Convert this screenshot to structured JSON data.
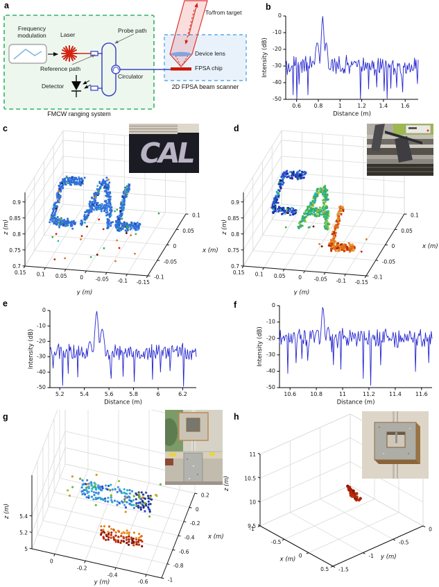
{
  "panels": {
    "a": {
      "label": "a"
    },
    "b": {
      "label": "b"
    },
    "c": {
      "label": "c"
    },
    "d": {
      "label": "d"
    },
    "e": {
      "label": "e"
    },
    "f": {
      "label": "f"
    },
    "g": {
      "label": "g"
    },
    "h": {
      "label": "h"
    }
  },
  "diagram_a": {
    "labels": {
      "frequency_modulation": "Frequency modulation",
      "laser": "Laser",
      "probe_path": "Probe path",
      "reference_path": "Reference path",
      "detector": "Detector",
      "circulator": "Circulator",
      "device_lens": "Device lens",
      "fpsa_chip": "FPSA chip",
      "scanner_caption": "2D FPSA beam scanner",
      "system_caption": "FMCW ranging system",
      "target": "To/from target"
    },
    "colors": {
      "system_box_border": "#2eb365",
      "system_box_fill": "#edf7ee",
      "scanner_box_border": "#58a8e8",
      "scanner_box_fill": "#e9f2fb",
      "fiber_blue": "#3b45c8",
      "laser_red": "#d42313",
      "beam_red": "#e03030",
      "chip_red": "#cc1504",
      "lens_blue": "#7b9fe0",
      "wave_blue": "#86b7dc"
    }
  },
  "insets": {
    "c_text": "CAL"
  },
  "letter_shapes": {
    "C": [
      [
        [
          0.92,
          0.97
        ],
        [
          0.16,
          0.97
        ]
      ],
      [
        [
          0.16,
          0.97
        ],
        [
          0.08,
          0.04
        ]
      ],
      [
        [
          0.08,
          0.04
        ],
        [
          0.9,
          0.0
        ]
      ]
    ],
    "A": [
      [
        [
          0.03,
          0.02
        ],
        [
          0.4,
          0.98
        ]
      ],
      [
        [
          0.42,
          0.98
        ],
        [
          0.6,
          0.98
        ]
      ],
      [
        [
          0.58,
          0.98
        ],
        [
          0.99,
          0.0
        ]
      ],
      [
        [
          0.22,
          0.42
        ],
        [
          0.82,
          0.42
        ]
      ]
    ],
    "L": [
      [
        [
          0.2,
          0.98
        ],
        [
          0.1,
          0.02
        ]
      ],
      [
        [
          0.1,
          0.02
        ],
        [
          0.97,
          0.06
        ]
      ]
    ]
  },
  "palettes": {
    "blueMix": [
      [
        0.78,
        "#2f6fd8"
      ],
      [
        0.08,
        "#4a8ae2"
      ],
      [
        0.05,
        "#1f3fae"
      ],
      [
        0.03,
        "#28b7c8"
      ],
      [
        0.03,
        "#3fae4e"
      ],
      [
        0.02,
        "#16182e"
      ],
      [
        0.01,
        "#e07820"
      ]
    ],
    "blueDeep": [
      [
        0.42,
        "#2c50cc"
      ],
      [
        0.25,
        "#1a2fa0"
      ],
      [
        0.15,
        "#4a7de0"
      ],
      [
        0.08,
        "#101a60"
      ],
      [
        0.06,
        "#28b7c8"
      ],
      [
        0.04,
        "#3fae4e"
      ]
    ],
    "greenMix": [
      [
        0.38,
        "#3cb054"
      ],
      [
        0.25,
        "#27a98c"
      ],
      [
        0.15,
        "#7ac43f"
      ],
      [
        0.12,
        "#20b9c0"
      ],
      [
        0.06,
        "#b8cc2a"
      ],
      [
        0.04,
        "#e0a020"
      ]
    ],
    "orangeMix": [
      [
        0.45,
        "#e4711e"
      ],
      [
        0.28,
        "#cf3f10"
      ],
      [
        0.12,
        "#f09a2a"
      ],
      [
        0.1,
        "#a82408"
      ],
      [
        0.05,
        "#d8a020"
      ]
    ],
    "outliers": [
      [
        0.3,
        "#3fae4e"
      ],
      [
        0.25,
        "#e07820"
      ],
      [
        0.2,
        "#cc2200"
      ],
      [
        0.15,
        "#28b7c8"
      ],
      [
        0.1,
        "#6a1200"
      ]
    ],
    "frameMain": [
      [
        0.4,
        "#3a86d8"
      ],
      [
        0.25,
        "#28b0d0"
      ],
      [
        0.2,
        "#4a9ae0"
      ],
      [
        0.15,
        "#2255c8"
      ]
    ],
    "frameDark": [
      [
        0.5,
        "#27368f"
      ],
      [
        0.3,
        "#2c46c8"
      ],
      [
        0.2,
        "#1a2a78"
      ]
    ],
    "cardOrange": [
      [
        0.45,
        "#e8821e"
      ],
      [
        0.3,
        "#d8581a"
      ],
      [
        0.25,
        "#e89a28"
      ]
    ],
    "cardRed": [
      [
        0.4,
        "#b42408"
      ],
      [
        0.25,
        "#9a1a04"
      ],
      [
        0.25,
        "#c43c10"
      ],
      [
        0.1,
        "#7e1202"
      ]
    ],
    "gNoise": [
      [
        0.4,
        "#6ab83a"
      ],
      [
        0.3,
        "#a0c030"
      ],
      [
        0.3,
        "#e0941e"
      ]
    ],
    "hRed": [
      [
        0.4,
        "#a81c04"
      ],
      [
        0.3,
        "#b42e0a"
      ],
      [
        0.2,
        "#8a1200"
      ],
      [
        0.1,
        "#c04814"
      ]
    ]
  },
  "chart_data": [
    {
      "id": "b",
      "type": "line",
      "xlabel": "Distance (m)",
      "ylabel": "Intensity (dB)",
      "xlim": [
        0.5,
        1.72
      ],
      "ylim": [
        -50,
        0
      ],
      "xticks": [
        0.6,
        0.8,
        1,
        1.2,
        1.4,
        1.6
      ],
      "xtick_labels": [
        "0.6",
        "0.8",
        "1",
        "1.2",
        "1.4",
        "1.6"
      ],
      "yticks": [
        0,
        -10,
        -20,
        -30,
        -40,
        -50
      ],
      "ytick_labels": [
        "0",
        "-10",
        "-20",
        "-30",
        "-40",
        "-50"
      ],
      "line_color": "#2424cf",
      "peak_x": 0.84,
      "peak_db": 0,
      "main_halfwidth": 0.013,
      "noise_floor": -30,
      "noise_amp": 4.5,
      "null_prob": 0.08,
      "null_depth": 14,
      "shoulders": [
        {
          "x": -0.05,
          "w": 0.02,
          "h": -16
        },
        {
          "x": 0.033,
          "w": 0.016,
          "h": -16
        }
      ],
      "n": 180,
      "seed": 11
    },
    {
      "id": "e",
      "type": "line",
      "xlabel": "Distance (m)",
      "ylabel": "Intensity (dB)",
      "xlim": [
        5.12,
        6.31
      ],
      "ylim": [
        -50,
        0
      ],
      "xticks": [
        5.2,
        5.4,
        5.6,
        5.8,
        6,
        6.2
      ],
      "xtick_labels": [
        "5.2",
        "5.4",
        "5.6",
        "5.8",
        "6",
        "6.2"
      ],
      "yticks": [
        0,
        -10,
        -20,
        -30,
        -40,
        -50
      ],
      "ytick_labels": [
        "0",
        "-10",
        "-20",
        "-30",
        "-40",
        "-50"
      ],
      "line_color": "#2424cf",
      "peak_x": 5.5,
      "peak_db": 0,
      "main_halfwidth": 0.015,
      "noise_floor": -27,
      "noise_amp": 4,
      "null_prob": 0.07,
      "null_depth": 16,
      "shoulders": [
        {
          "x": 0.045,
          "w": 0.018,
          "h": -12
        },
        {
          "x": -0.055,
          "w": 0.02,
          "h": -20
        }
      ],
      "n": 185,
      "seed": 5
    },
    {
      "id": "f",
      "type": "line",
      "xlabel": "Distance (m)",
      "ylabel": "Intensity (dB)",
      "xlim": [
        10.52,
        11.68
      ],
      "ylim": [
        -50,
        0
      ],
      "xticks": [
        10.6,
        10.8,
        11,
        11.2,
        11.4,
        11.6
      ],
      "xtick_labels": [
        "10.6",
        "10.8",
        "11",
        "11.2",
        "11.4",
        "11.6"
      ],
      "yticks": [
        0,
        -10,
        -20,
        -30,
        -40,
        -50
      ],
      "ytick_labels": [
        "0",
        "-10",
        "-20",
        "-30",
        "-40",
        "-50"
      ],
      "line_color": "#2424cf",
      "peak_x": 10.85,
      "peak_db": 0,
      "main_halfwidth": 0.013,
      "noise_floor": -20,
      "noise_amp": 4.5,
      "null_prob": 0.12,
      "null_depth": 18,
      "shoulders": [
        {
          "x": 0.04,
          "w": 0.015,
          "h": -13
        },
        {
          "x": -0.045,
          "w": 0.018,
          "h": -15
        }
      ],
      "n": 185,
      "seed": 9
    },
    {
      "id": "c",
      "type": "scatter3d",
      "point_cloud_text": "CAL",
      "alabel": "y (m)",
      "blabel": "x (m)",
      "zlabel": "z (m)",
      "alim": [
        0.15,
        -0.15
      ],
      "blim": [
        -0.1,
        0.1
      ],
      "zlim": [
        0.7,
        0.93
      ],
      "aticks": [
        0.15,
        0.1,
        0.05,
        0,
        -0.05,
        -0.1,
        -0.15
      ],
      "atick_labels": [
        "0.15",
        "0.1",
        "0.05",
        "0",
        "-0.05",
        "-0.1",
        "-0.15"
      ],
      "bticks": [
        -0.1,
        -0.05,
        0,
        0.05,
        0.1
      ],
      "btick_labels": [
        "-0.1",
        "-0.05",
        "0",
        "0.05",
        "0.1"
      ],
      "zticks": [
        0.7,
        0.75,
        0.8,
        0.85,
        0.9
      ],
      "ztick_labels": [
        "0.7",
        "0.75",
        "0.8",
        "0.85",
        "0.9"
      ],
      "clusters": [
        {
          "type": "letters",
          "letter": "C",
          "a0": 0.118,
          "a1": 0.05,
          "z0": 0.782,
          "z1": 0.922,
          "b": -0.04,
          "bjit": 0.012,
          "shear": -0.022,
          "thick": 0.15,
          "n": 270,
          "palette": "blueMix",
          "size": 2.7,
          "seed": 101
        },
        {
          "type": "letters",
          "letter": "A",
          "a0": 0.04,
          "a1": -0.03,
          "z0": 0.782,
          "z1": 0.922,
          "b": -0.04,
          "bjit": 0.012,
          "shear": -0.022,
          "thick": 0.15,
          "n": 300,
          "palette": "blueMix",
          "size": 2.7,
          "seed": 102
        },
        {
          "type": "letters",
          "letter": "L",
          "a0": -0.04,
          "a1": -0.104,
          "z0": 0.782,
          "z1": 0.922,
          "b": -0.04,
          "bjit": 0.012,
          "shear": -0.022,
          "thick": 0.15,
          "n": 240,
          "palette": "blueMix",
          "size": 2.7,
          "seed": 103
        },
        {
          "type": "noise",
          "n": 26,
          "arange": [
            0.125,
            -0.125
          ],
          "brange": [
            -0.1,
            0.02
          ],
          "zrange": [
            0.715,
            0.805
          ],
          "palette": "outliers",
          "size": 2.8,
          "seed": 104
        }
      ]
    },
    {
      "id": "d",
      "type": "scatter3d",
      "point_cloud_text": "CAL",
      "alabel": "y (m)",
      "blabel": "x (m)",
      "zlabel": "z (m)",
      "alim": [
        0.15,
        -0.15
      ],
      "blim": [
        -0.1,
        0.1
      ],
      "zlim": [
        0.7,
        0.93
      ],
      "aticks": [
        0.15,
        0.1,
        0.05,
        0,
        -0.05,
        -0.1,
        -0.15
      ],
      "atick_labels": [
        "0.15",
        "0.1",
        "0.05",
        "0",
        "-0.05",
        "-0.1",
        "-0.15"
      ],
      "bticks": [
        -0.1,
        -0.05,
        0,
        0.05,
        0.1
      ],
      "btick_labels": [
        "-0.1",
        "-0.05",
        "0",
        "0.05",
        "0.1"
      ],
      "zticks": [
        0.7,
        0.75,
        0.8,
        0.85,
        0.9
      ],
      "ztick_labels": [
        "0.7",
        "0.75",
        "0.8",
        "0.85",
        "0.9"
      ],
      "clusters": [
        {
          "type": "letters",
          "letter": "C",
          "a0": 0.118,
          "a1": 0.05,
          "z0": 0.805,
          "z1": 0.925,
          "b": -0.025,
          "bjit": 0.012,
          "shear": -0.022,
          "thick": 0.15,
          "n": 260,
          "palette": "blueDeep",
          "size": 2.7,
          "seed": 111
        },
        {
          "type": "letters",
          "letter": "A",
          "a0": 0.04,
          "a1": -0.03,
          "z0": 0.778,
          "z1": 0.905,
          "b": -0.045,
          "bjit": 0.012,
          "shear": -0.022,
          "thick": 0.15,
          "n": 300,
          "palette": "greenMix",
          "size": 2.7,
          "seed": 112
        },
        {
          "type": "letters",
          "letter": "L",
          "a0": -0.04,
          "a1": -0.106,
          "z0": 0.742,
          "z1": 0.878,
          "b": -0.065,
          "bjit": 0.012,
          "shear": -0.022,
          "thick": 0.15,
          "n": 230,
          "palette": "orangeMix",
          "size": 2.7,
          "seed": 113
        },
        {
          "type": "noise",
          "n": 9,
          "arange": [
            0.12,
            -0.12
          ],
          "brange": [
            -0.09,
            0.0
          ],
          "zrange": [
            0.72,
            0.8
          ],
          "palette": "outliers",
          "size": 2.8,
          "seed": 114
        }
      ]
    },
    {
      "id": "g",
      "type": "scatter3d",
      "alabel": "y (m)",
      "blabel": "x (m)",
      "zlabel": "z (m)",
      "alim": [
        0.15,
        -0.7
      ],
      "blim": [
        -1,
        0.2
      ],
      "zlim": [
        5,
        5.9
      ],
      "aticks": [
        0,
        -0.2,
        -0.4,
        -0.6
      ],
      "atick_labels": [
        "0",
        "-0.2",
        "-0.4",
        "-0.6"
      ],
      "bticks": [
        0.2,
        0,
        -0.2,
        -0.4,
        -0.6,
        -0.8,
        -1
      ],
      "btick_labels": [
        "0.2",
        "0",
        "-0.2",
        "-0.4",
        "-0.6",
        "-0.8",
        "-1"
      ],
      "zticks": [
        5,
        5.2,
        5.4
      ],
      "ztick_labels": [
        "5",
        "5.2",
        "5.4"
      ],
      "clusters": [
        {
          "type": "frame",
          "b": -0.68,
          "bjit": 0.05,
          "a0": -0.12,
          "a1": -0.57,
          "step": 0.0155,
          "rows": [
            5.492,
            5.522,
            5.552,
            5.582,
            5.612,
            5.642,
            5.672
          ],
          "holeRows": [
            2,
            3,
            4
          ],
          "holeA": [
            -0.245,
            -0.39
          ],
          "darkA": -0.465,
          "mainPalette": "frameMain",
          "darkPalette": "frameDark",
          "size": 3.2,
          "skip": 0.12,
          "seed": 201
        },
        {
          "type": "card",
          "b": -0.95,
          "bjit": 0.04,
          "a0": -0.295,
          "a1": -0.575,
          "step": 0.0165,
          "rows": [
            5.282,
            5.309,
            5.336,
            5.363,
            5.39,
            5.417
          ],
          "orangeZ": 5.385,
          "orangePalette": "cardOrange",
          "redPalette": "cardRed",
          "size": 3.2,
          "skip": 0.18,
          "seed": 202
        },
        {
          "type": "noise",
          "n": 26,
          "arange": [
            -0.03,
            -0.62
          ],
          "brange": [
            -0.55,
            -0.8
          ],
          "zrange": [
            5.44,
            5.76
          ],
          "palette": "gNoise",
          "size": 3.2,
          "seed": 203
        }
      ]
    },
    {
      "id": "h",
      "type": "scatter3d",
      "alabel": "x (m)",
      "blabel": "y (m)",
      "zlabel": "z (m)",
      "alim": [
        -1,
        0.5
      ],
      "blim": [
        -1.5,
        0
      ],
      "zlim": [
        9.5,
        11
      ],
      "aticks": [
        -1,
        -0.5,
        0,
        0.5
      ],
      "atick_labels": [
        "-1",
        "-0.5",
        "0",
        "0.5"
      ],
      "bticks": [
        -1.5,
        -1,
        -0.5,
        0
      ],
      "btick_labels": [
        "-1.5",
        "-1",
        "-0.5",
        "0"
      ],
      "zticks": [
        9.5,
        10,
        10.5,
        11
      ],
      "ztick_labels": [
        "9.5",
        "10",
        "10.5",
        "11"
      ],
      "clusters": [
        {
          "type": "hrows",
          "z0": 9.9,
          "dz": 0.05,
          "a0": -0.36,
          "daRow": 0.012,
          "b0": -0.48,
          "dbRow": -0.02,
          "daDot": 0.055,
          "dbDot": -0.006,
          "counts": [
            3,
            4,
            2,
            5,
            3,
            4,
            3,
            2
          ],
          "palette": "hRed",
          "size": 4.4,
          "seed": 301
        }
      ]
    }
  ]
}
